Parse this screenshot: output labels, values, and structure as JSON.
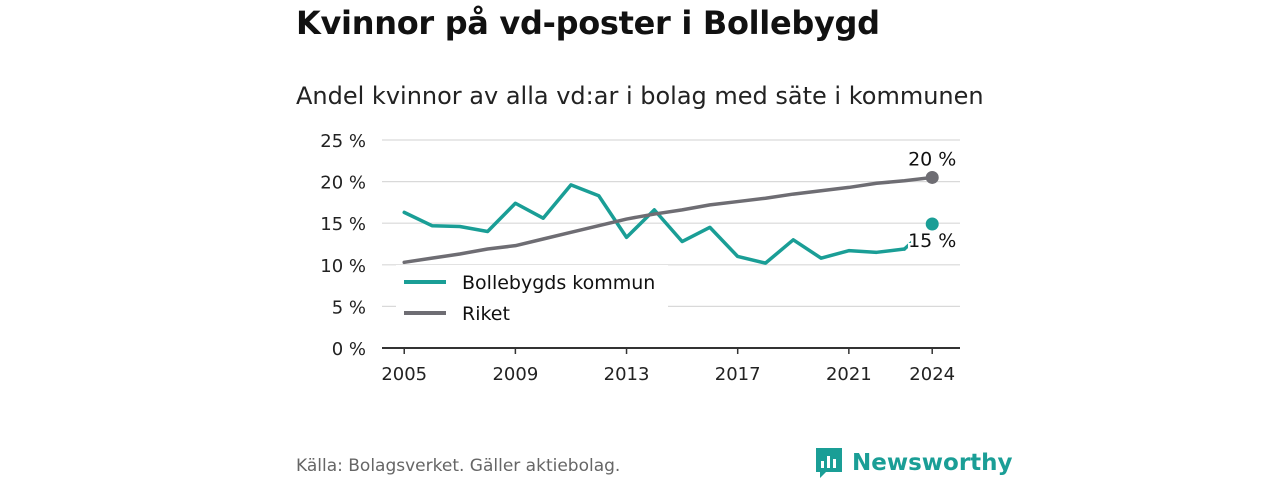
{
  "header": {
    "title": "Kvinnor på vd-poster i Bollebygd",
    "subtitle": "Andel kvinnor av alla vd:ar i bolag med säte i kommunen"
  },
  "footer": {
    "source": "Källa: Bolagsverket. Gäller aktiebolag.",
    "brand": "Newsworthy"
  },
  "colors": {
    "kommun": "#1a9e96",
    "riket": "#6e6d73",
    "grid": "#d9d9d9",
    "axis": "#333333",
    "brand": "#1a9e96"
  },
  "chart_data": {
    "type": "line",
    "title": "Kvinnor på vd-poster i Bollebygd",
    "subtitle": "Andel kvinnor av alla vd:ar i bolag med säte i kommunen",
    "xlabel": "",
    "ylabel": "",
    "x": [
      2005,
      2006,
      2007,
      2008,
      2009,
      2010,
      2011,
      2012,
      2013,
      2014,
      2015,
      2016,
      2017,
      2018,
      2019,
      2020,
      2021,
      2022,
      2023,
      2024
    ],
    "xticks": [
      "2005",
      "2009",
      "2013",
      "2017",
      "2021",
      "2024"
    ],
    "yticks": [
      "0 %",
      "5 %",
      "10 %",
      "15 %",
      "20 %",
      "25 %"
    ],
    "ylim": [
      0,
      25
    ],
    "grid": true,
    "legend_position": "left",
    "series": [
      {
        "name": "Bollebygds kommun",
        "values": [
          16.3,
          14.7,
          14.6,
          14.0,
          17.4,
          15.6,
          19.6,
          18.3,
          13.3,
          16.6,
          12.8,
          14.5,
          11.0,
          10.2,
          13.0,
          10.8,
          11.7,
          11.5,
          11.9,
          14.9
        ],
        "end_label": "15 %"
      },
      {
        "name": "Riket",
        "values": [
          10.3,
          10.8,
          11.3,
          11.9,
          12.3,
          13.1,
          13.9,
          14.7,
          15.5,
          16.1,
          16.6,
          17.2,
          17.6,
          18.0,
          18.5,
          18.9,
          19.3,
          19.8,
          20.1,
          20.5
        ],
        "end_label": "20 %"
      }
    ]
  }
}
